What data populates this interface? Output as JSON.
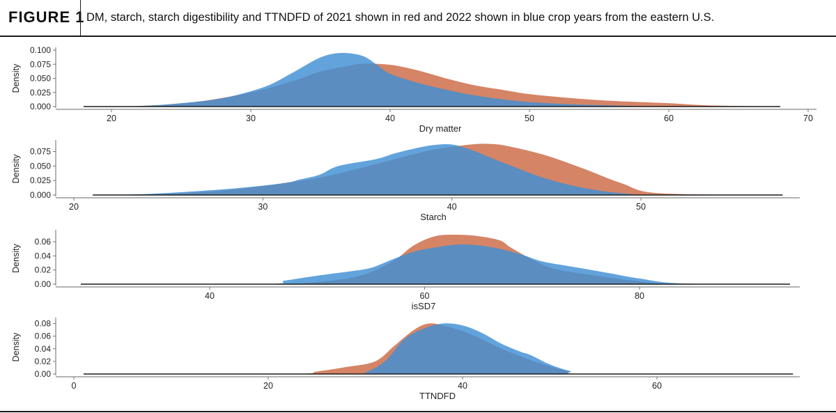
{
  "figure": {
    "label": "FIGURE 1",
    "caption": "DM, starch, starch digestibility and TTNDFD of 2021 shown in red and 2022 shown in blue crop years from the eastern U.S."
  },
  "colors": {
    "y2021": "#d58466",
    "y2022": "#3f8fd4",
    "overlap": "#4a82b8"
  },
  "chart_data": [
    {
      "type": "area",
      "xlabel": "Dry matter",
      "ylabel": "Density",
      "xlim": [
        16,
        70
      ],
      "ylim": [
        0,
        0.1
      ],
      "xticks": [
        20,
        30,
        40,
        50,
        60,
        70
      ],
      "yticks": [
        0.0,
        0.025,
        0.05,
        0.075,
        0.1
      ],
      "ytick_labels": [
        "0.000",
        "0.025",
        "0.050",
        "0.075",
        "0.100"
      ],
      "series": [
        {
          "color_key": "y2021",
          "x": [
            18,
            22,
            26,
            30,
            33,
            35,
            37,
            38,
            40,
            42,
            44,
            46,
            48,
            50,
            53,
            56,
            60,
            63,
            68
          ],
          "y": [
            0,
            0.001,
            0.008,
            0.025,
            0.045,
            0.062,
            0.072,
            0.076,
            0.074,
            0.064,
            0.05,
            0.038,
            0.03,
            0.022,
            0.015,
            0.01,
            0.006,
            0.002,
            0
          ]
        },
        {
          "color_key": "y2022",
          "x": [
            18,
            22,
            25,
            28,
            31,
            33,
            35,
            36.5,
            38,
            39,
            40,
            42,
            44,
            46,
            48,
            50,
            53,
            56,
            60,
            68
          ],
          "y": [
            0,
            0.001,
            0.006,
            0.015,
            0.035,
            0.06,
            0.087,
            0.095,
            0.09,
            0.075,
            0.058,
            0.042,
            0.03,
            0.02,
            0.013,
            0.008,
            0.004,
            0.002,
            0,
            0
          ]
        }
      ]
    },
    {
      "type": "area",
      "xlabel": "Starch",
      "ylabel": "Density",
      "xlim": [
        19,
        58
      ],
      "ylim": [
        0,
        0.09
      ],
      "xticks": [
        20,
        30,
        40,
        50
      ],
      "yticks": [
        0.0,
        0.025,
        0.05,
        0.075
      ],
      "ytick_labels": [
        "0.000",
        "0.025",
        "0.050",
        "0.075"
      ],
      "series": [
        {
          "color_key": "y2021",
          "x": [
            21,
            24,
            28,
            31,
            33,
            35,
            37,
            39,
            41,
            42,
            43,
            45,
            47,
            49,
            51,
            57.5
          ],
          "y": [
            0,
            0.001,
            0.008,
            0.02,
            0.03,
            0.045,
            0.062,
            0.078,
            0.087,
            0.088,
            0.084,
            0.068,
            0.045,
            0.02,
            0.003,
            0
          ]
        },
        {
          "color_key": "y2022",
          "x": [
            21,
            24,
            28,
            31,
            32,
            33,
            34,
            36,
            37,
            38,
            39,
            40,
            41,
            42,
            43,
            45,
            47,
            49,
            51,
            57.5
          ],
          "y": [
            0,
            0.002,
            0.01,
            0.02,
            0.027,
            0.035,
            0.05,
            0.062,
            0.072,
            0.08,
            0.086,
            0.087,
            0.078,
            0.065,
            0.052,
            0.028,
            0.012,
            0.003,
            0,
            0
          ]
        }
      ]
    },
    {
      "type": "area",
      "xlabel": "isSD7",
      "ylabel": "Density",
      "xlim": [
        26,
        95
      ],
      "ylim": [
        0,
        0.073
      ],
      "xticks": [
        40,
        60,
        80
      ],
      "yticks": [
        0.0,
        0.02,
        0.04,
        0.06
      ],
      "ytick_labels": [
        "0.00",
        "0.02",
        "0.04",
        "0.06"
      ],
      "series": [
        {
          "color_key": "y2021",
          "x": [
            28,
            45,
            50,
            54,
            57,
            59,
            61,
            63,
            65,
            67,
            68,
            70,
            72,
            76,
            80,
            84,
            94
          ],
          "y": [
            0,
            0,
            0.003,
            0.012,
            0.032,
            0.055,
            0.068,
            0.07,
            0.068,
            0.062,
            0.052,
            0.035,
            0.022,
            0.012,
            0.004,
            0,
            0
          ]
        },
        {
          "color_key": "y2022",
          "x": [
            28,
            45,
            47,
            50,
            53,
            55,
            57,
            59,
            61,
            63,
            65,
            67,
            69,
            71,
            74,
            77,
            80,
            84,
            94
          ],
          "y": [
            0,
            0,
            0.005,
            0.012,
            0.018,
            0.023,
            0.035,
            0.046,
            0.052,
            0.056,
            0.055,
            0.05,
            0.042,
            0.032,
            0.024,
            0.016,
            0.008,
            0.001,
            0
          ]
        }
      ]
    },
    {
      "type": "area",
      "xlabel": "TTNDFD",
      "ylabel": "Density",
      "xlim": [
        -2,
        76
      ],
      "ylim": [
        0,
        0.085
      ],
      "xticks": [
        0,
        20,
        40,
        60
      ],
      "yticks": [
        0.0,
        0.02,
        0.04,
        0.06,
        0.08
      ],
      "ytick_labels": [
        "0.00",
        "0.02",
        "0.04",
        "0.06",
        "0.08"
      ],
      "series": [
        {
          "color_key": "y2021",
          "x": [
            1,
            22,
            25,
            28,
            31,
            33,
            35,
            36.5,
            38,
            40,
            42,
            44,
            46,
            47,
            49,
            51,
            53,
            74
          ],
          "y": [
            0,
            0,
            0.004,
            0.011,
            0.02,
            0.045,
            0.07,
            0.08,
            0.077,
            0.068,
            0.055,
            0.04,
            0.028,
            0.022,
            0.012,
            0.004,
            0,
            0
          ]
        },
        {
          "color_key": "y2022",
          "x": [
            1,
            28,
            30,
            32,
            34,
            36,
            38,
            40,
            42,
            44,
            46,
            47,
            49,
            51,
            53,
            74
          ],
          "y": [
            0,
            0,
            0.003,
            0.02,
            0.055,
            0.072,
            0.08,
            0.077,
            0.065,
            0.048,
            0.035,
            0.03,
            0.015,
            0.005,
            0,
            0
          ]
        }
      ]
    }
  ]
}
